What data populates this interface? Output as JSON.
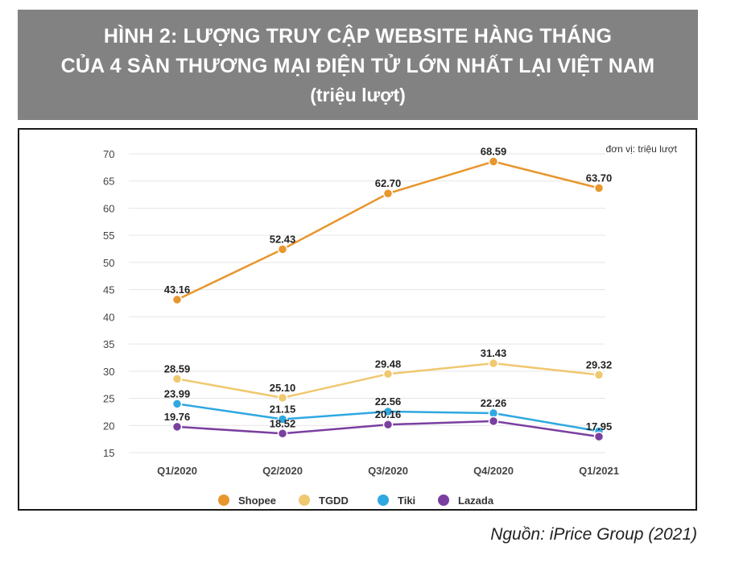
{
  "header": {
    "line1": "HÌNH 2: LƯỢNG TRUY CẬP WEBSITE HÀNG THÁNG",
    "line2": "CỦA 4 SÀN THƯƠNG MẠI ĐIỆN TỬ LỚN NHẤT LẠI VIỆT NAM",
    "line3": "(triệu lượt)"
  },
  "source": "Nguồn: iPrice Group (2021)",
  "chart_data": {
    "type": "line",
    "unit_note": "đơn vị: triệu lượt",
    "categories": [
      "Q1/2020",
      "Q2/2020",
      "Q3/2020",
      "Q4/2020",
      "Q1/2021"
    ],
    "ylim": [
      15,
      70
    ],
    "yticks": [
      15,
      20,
      25,
      30,
      35,
      40,
      45,
      50,
      55,
      60,
      65,
      70
    ],
    "grid": true,
    "legend": "bottom",
    "series": [
      {
        "name": "Shopee",
        "color": "#e8962e",
        "values": [
          43.16,
          52.43,
          62.7,
          68.59,
          63.7
        ],
        "labels": [
          "43.16",
          "52.43",
          "62.70",
          "68.59",
          "63.70"
        ]
      },
      {
        "name": "TGDD",
        "color": "#f0c870",
        "values": [
          28.59,
          25.1,
          29.48,
          31.43,
          29.32
        ],
        "labels": [
          "28.59",
          "25.10",
          "29.48",
          "31.43",
          "29.32"
        ]
      },
      {
        "name": "Tiki",
        "color": "#2fa8e0",
        "values": [
          23.99,
          21.15,
          22.56,
          22.26,
          18.95
        ],
        "labels": [
          "23.99",
          "21.15",
          "22.56",
          "22.26",
          ""
        ]
      },
      {
        "name": "Lazada",
        "color": "#7a3fa0",
        "values": [
          19.76,
          18.52,
          20.16,
          20.8,
          17.95
        ],
        "labels": [
          "19.76",
          "18.52",
          "20.16",
          "",
          "17.95"
        ]
      }
    ]
  }
}
